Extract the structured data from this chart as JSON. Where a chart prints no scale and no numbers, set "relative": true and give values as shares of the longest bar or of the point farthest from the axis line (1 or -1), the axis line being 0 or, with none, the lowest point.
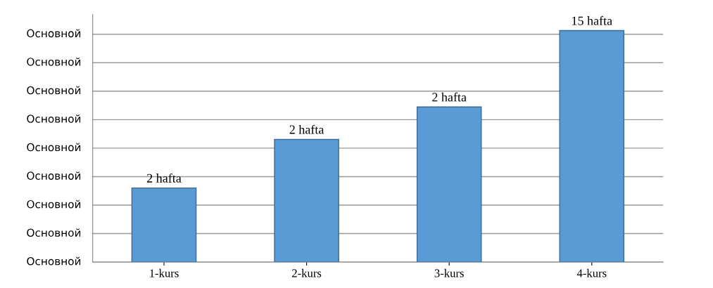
{
  "chart_data": {
    "type": "bar",
    "categories": [
      "1-kurs",
      "2-kurs",
      "3-kurs",
      "4-kurs"
    ],
    "values": [
      0.32,
      0.53,
      0.67,
      1
    ],
    "relative": true,
    "color": "#5b9bd5",
    "annotations": [
      "Основной",
      "Основной",
      "Основной",
      "Основной",
      "Основной",
      "Основной",
      "Основной",
      "Основной",
      "Основной",
      {
        "text": "2 hafta",
        "x": "1-kurs",
        "y": 0.32
      },
      {
        "text": "2 hafta",
        "x": "2-kurs",
        "y": 0.53
      },
      {
        "text": "2 hafta",
        "x": "3-kurs",
        "y": 0.67
      },
      {
        "text": "15 hafta",
        "x": "4-kurs",
        "y": 1
      }
    ],
    "grid": "y",
    "legend": false
  }
}
